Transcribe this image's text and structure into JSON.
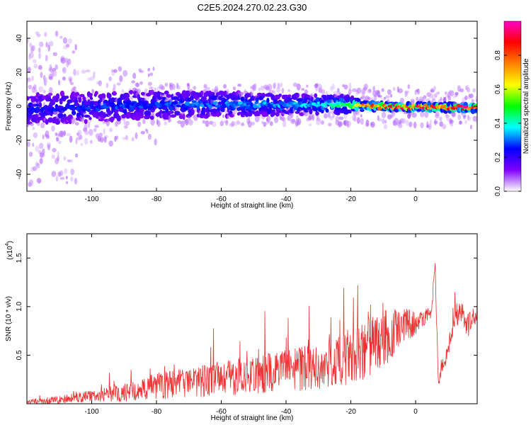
{
  "title": "C2E5.2024.270.02.23.G30",
  "chart_data": [
    {
      "type": "heatmap",
      "xlabel": "Height of straight line (km)",
      "ylabel": "Frequency (Hz)",
      "xlim": [
        -120,
        19
      ],
      "ylim": [
        -50,
        50
      ],
      "x_ticks": [
        -100,
        -80,
        -60,
        -40,
        -20,
        0
      ],
      "y_ticks": [
        -40,
        -20,
        0,
        20,
        40
      ],
      "colorbar": {
        "label": "Normalized spectral amplitude",
        "range": [
          0.0,
          1.0
        ],
        "ticks": [
          0.0,
          0.2,
          0.4,
          0.6,
          0.8
        ],
        "tick_labels": [
          "0.0",
          "0.2",
          "0.4",
          "0.6",
          "0.8"
        ],
        "colors": [
          "#ffffff",
          "#7f00ff",
          "#0000ff",
          "#00ffff",
          "#00ff00",
          "#ffff00",
          "#ff8000",
          "#ff0000",
          "#ff00c8"
        ]
      },
      "band": {
        "center_freq": [
          [
            -120,
            -2
          ],
          [
            -80,
            1
          ],
          [
            -40,
            1
          ],
          [
            -22,
            1
          ],
          [
            -15,
            0
          ],
          [
            19,
            -1
          ]
        ],
        "half_width": [
          [
            -120,
            9
          ],
          [
            -60,
            7
          ],
          [
            -22,
            5
          ],
          [
            -15,
            2
          ],
          [
            19,
            2
          ]
        ],
        "peak_amplitude": [
          [
            -120,
            0.25
          ],
          [
            -80,
            0.3
          ],
          [
            -40,
            0.35
          ],
          [
            -22,
            0.45
          ],
          [
            -15,
            0.85
          ],
          [
            19,
            0.95
          ]
        ]
      }
    },
    {
      "type": "line",
      "xlabel": "Height of straight line (km)",
      "ylabel": "SNR (10 * v/v)",
      "y_scale_label": "(x10",
      "y_scale_exponent": "4",
      "y_scale_suffix": ")",
      "xlim": [
        -120,
        19
      ],
      "ylim": [
        0.0,
        1.75
      ],
      "x_ticks": [
        -100,
        -80,
        -60,
        -40,
        -20,
        0
      ],
      "y_ticks": [
        0.5,
        1.0,
        1.5
      ],
      "y_tick_labels": [
        "0.5",
        "1.0",
        "1.5"
      ],
      "color": "#ee3030",
      "series": [
        {
          "x": [
            -120,
            -110,
            -100,
            -90,
            -85,
            -80,
            -70,
            -60,
            -50,
            -40,
            -30,
            -25,
            -20,
            -18,
            -15,
            -10,
            -8,
            -5,
            0,
            3,
            5,
            6,
            7,
            8,
            10,
            12,
            14,
            16,
            19
          ],
          "y": [
            0.02,
            0.04,
            0.08,
            0.12,
            0.14,
            0.18,
            0.22,
            0.26,
            0.3,
            0.34,
            0.38,
            0.42,
            0.46,
            0.5,
            0.58,
            0.65,
            0.72,
            0.78,
            0.83,
            0.9,
            0.95,
            1.5,
            0.2,
            0.35,
            0.55,
            0.9,
            0.95,
            0.8,
            0.95
          ],
          "spike_amplitude": [
            0.02,
            0.04,
            0.06,
            0.1,
            0.12,
            0.14,
            0.16,
            0.18,
            0.2,
            0.22,
            0.24,
            0.26,
            0.28,
            0.3,
            0.32,
            0.3,
            0.28,
            0.22,
            0.12,
            0.08,
            0.06,
            0.1,
            0.08,
            0.08,
            0.1,
            0.12,
            0.12,
            0.12,
            0.1
          ]
        }
      ]
    }
  ]
}
